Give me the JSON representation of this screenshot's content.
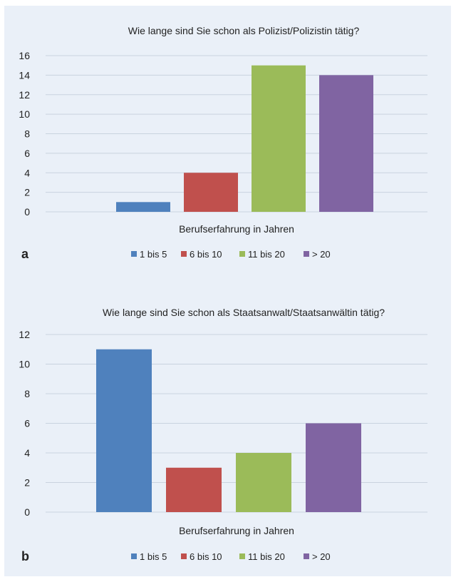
{
  "colors": {
    "background": "#eaf0f8",
    "gridline": "#c9d3df",
    "axis_text": "#222222"
  },
  "chart_data": [
    {
      "panel_label": "a",
      "type": "bar",
      "title": "Wie lange sind Sie schon als Polizist/Polizistin tätig?",
      "xlabel": "Berufserfahrung in Jahren",
      "ylabel": "",
      "ylim": [
        0,
        16
      ],
      "yticks": [
        0,
        2,
        4,
        6,
        8,
        10,
        12,
        14,
        16
      ],
      "grid": true,
      "legend_position": "bottom",
      "series": [
        {
          "name": "1 bis 5",
          "value": 1,
          "color": "#4f81bd"
        },
        {
          "name": "6 bis 10",
          "value": 4,
          "color": "#c0504d"
        },
        {
          "name": "11 bis 20",
          "value": 15,
          "color": "#9bbb59"
        },
        {
          "name": "> 20",
          "value": 14,
          "color": "#8064a2"
        }
      ]
    },
    {
      "panel_label": "b",
      "type": "bar",
      "title": "Wie lange sind Sie schon als Staatsanwalt/Staatsanwältin tätig?",
      "xlabel": "Berufserfahrung in Jahren",
      "ylabel": "",
      "ylim": [
        0,
        12
      ],
      "yticks": [
        0,
        2,
        4,
        6,
        8,
        10,
        12
      ],
      "grid": true,
      "legend_position": "bottom",
      "series": [
        {
          "name": "1 bis 5",
          "value": 11,
          "color": "#4f81bd"
        },
        {
          "name": "6 bis 10",
          "value": 3,
          "color": "#c0504d"
        },
        {
          "name": "11 bis 20",
          "value": 4,
          "color": "#9bbb59"
        },
        {
          "name": "> 20",
          "value": 6,
          "color": "#8064a2"
        }
      ]
    }
  ]
}
